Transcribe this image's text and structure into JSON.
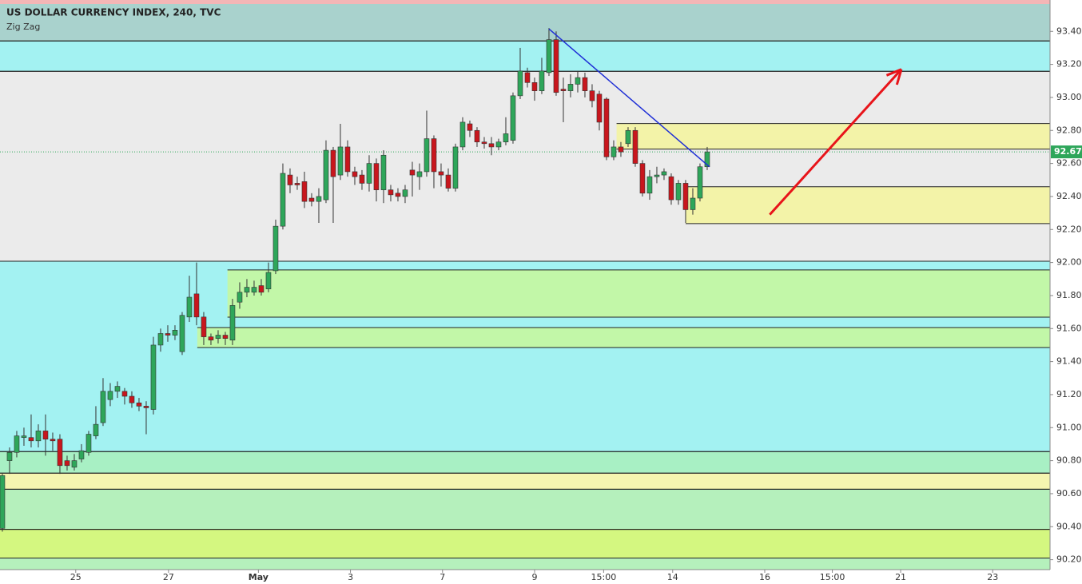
{
  "chart_data": {
    "type": "candlestick",
    "title": "US DOLLAR CURRENCY INDEX, 240, TVC",
    "subtitle": "Zig Zag",
    "up_color": "#2ea65a",
    "down_color": "#c8161d",
    "x": [
      0,
      1,
      2,
      3,
      4,
      5,
      6,
      7,
      8,
      9,
      10,
      11,
      12,
      13,
      14,
      15,
      16,
      17,
      18,
      19,
      20,
      21,
      22,
      23,
      24,
      25,
      26,
      27,
      28,
      29,
      30,
      31,
      32,
      33,
      34,
      35,
      36,
      37,
      38,
      39,
      40,
      41,
      42,
      43,
      44,
      45,
      46,
      47,
      48,
      49,
      50,
      51,
      52,
      53,
      54,
      55,
      56,
      57,
      58,
      59,
      60,
      61,
      62,
      63,
      64,
      65,
      66,
      67,
      68,
      69,
      70,
      71,
      72,
      73,
      74,
      75,
      76,
      77,
      78,
      79,
      80,
      81,
      82,
      83,
      84,
      85,
      86,
      87,
      88,
      89,
      90,
      91,
      92,
      93,
      94,
      95,
      96,
      97,
      98
    ],
    "open": [
      90.39,
      90.8,
      90.85,
      90.94,
      90.94,
      90.92,
      90.98,
      90.93,
      90.93,
      90.8,
      90.76,
      90.81,
      90.85,
      90.95,
      91.03,
      91.17,
      91.22,
      91.22,
      91.19,
      91.15,
      91.13,
      91.11,
      91.5,
      91.57,
      91.56,
      91.46,
      91.67,
      91.81,
      91.67,
      91.55,
      91.54,
      91.56,
      91.53,
      91.76,
      91.82,
      91.82,
      91.86,
      91.84,
      91.95,
      92.22,
      92.53,
      92.48,
      92.49,
      92.39,
      92.37,
      92.38,
      92.68,
      92.53,
      92.7,
      92.55,
      92.53,
      92.48,
      92.6,
      92.44,
      92.44,
      92.42,
      92.4,
      92.56,
      92.52,
      92.55,
      92.75,
      92.55,
      92.53,
      92.45,
      92.7,
      92.84,
      92.8,
      92.73,
      92.72,
      92.7,
      92.73,
      92.74,
      93.01,
      93.15,
      93.09,
      93.04,
      93.15,
      93.35,
      93.05,
      93.04,
      93.08,
      93.12,
      93.04,
      93.02,
      92.99,
      92.64,
      92.7,
      92.72,
      92.8,
      92.6,
      92.42,
      92.52,
      92.53,
      92.52,
      92.38,
      92.48,
      92.32,
      92.39,
      92.58
    ],
    "high": [
      90.72,
      90.88,
      90.98,
      91.0,
      91.08,
      91.02,
      91.08,
      90.97,
      90.96,
      90.83,
      90.84,
      90.9,
      90.98,
      91.13,
      91.3,
      91.27,
      91.28,
      91.24,
      91.22,
      91.18,
      91.16,
      91.55,
      91.6,
      91.62,
      91.62,
      91.7,
      91.92,
      92.0,
      91.7,
      91.57,
      91.59,
      91.58,
      91.78,
      91.88,
      91.9,
      91.89,
      91.9,
      92.0,
      92.26,
      92.6,
      92.57,
      92.52,
      92.55,
      92.42,
      92.45,
      92.74,
      92.7,
      92.84,
      92.74,
      92.58,
      92.56,
      92.65,
      92.63,
      92.68,
      92.47,
      92.45,
      92.47,
      92.61,
      92.6,
      92.92,
      92.77,
      92.6,
      92.57,
      92.72,
      92.88,
      92.86,
      92.82,
      92.76,
      92.76,
      92.75,
      92.88,
      93.03,
      93.3,
      93.18,
      93.12,
      93.24,
      93.42,
      93.4,
      93.12,
      93.14,
      93.16,
      93.15,
      93.08,
      93.04,
      93.0,
      92.74,
      92.73,
      92.82,
      92.82,
      92.62,
      92.56,
      92.58,
      92.57,
      92.54,
      92.5,
      92.5,
      92.45,
      92.6,
      92.7
    ],
    "low": [
      90.37,
      90.72,
      90.82,
      90.89,
      90.88,
      90.88,
      90.83,
      90.86,
      90.72,
      90.74,
      90.74,
      90.79,
      90.83,
      90.93,
      91.01,
      91.13,
      91.18,
      91.14,
      91.12,
      91.1,
      90.96,
      91.08,
      91.46,
      91.52,
      91.53,
      91.44,
      91.64,
      91.62,
      91.5,
      91.5,
      91.51,
      91.5,
      91.5,
      91.72,
      91.79,
      91.8,
      91.8,
      91.82,
      91.93,
      92.2,
      92.42,
      92.44,
      92.33,
      92.34,
      92.24,
      92.36,
      92.24,
      92.5,
      92.52,
      92.47,
      92.44,
      92.43,
      92.37,
      92.36,
      92.37,
      92.37,
      92.36,
      92.4,
      92.44,
      92.52,
      92.45,
      92.46,
      92.43,
      92.43,
      92.68,
      92.76,
      92.7,
      92.69,
      92.65,
      92.68,
      92.71,
      92.72,
      92.99,
      93.06,
      92.98,
      93.02,
      93.13,
      93.01,
      92.85,
      93.0,
      93.03,
      93.0,
      92.94,
      92.8,
      92.62,
      92.62,
      92.64,
      92.7,
      92.58,
      92.4,
      92.38,
      92.48,
      92.5,
      92.35,
      92.35,
      92.24,
      92.29,
      92.37,
      92.56
    ],
    "close": [
      90.71,
      90.85,
      90.95,
      90.95,
      90.92,
      90.98,
      90.93,
      90.92,
      90.77,
      90.77,
      90.8,
      90.86,
      90.96,
      91.02,
      91.22,
      91.22,
      91.25,
      91.19,
      91.15,
      91.13,
      91.12,
      91.5,
      91.57,
      91.56,
      91.59,
      91.68,
      91.79,
      91.67,
      91.55,
      91.53,
      91.56,
      91.54,
      91.74,
      91.82,
      91.85,
      91.85,
      91.82,
      91.94,
      92.22,
      92.54,
      92.47,
      92.47,
      92.37,
      92.37,
      92.4,
      92.68,
      92.52,
      92.7,
      92.55,
      92.52,
      92.48,
      92.6,
      92.44,
      92.65,
      92.41,
      92.4,
      92.44,
      92.53,
      92.55,
      92.75,
      92.55,
      92.53,
      92.45,
      92.7,
      92.85,
      92.8,
      92.73,
      92.72,
      92.7,
      92.73,
      92.78,
      93.01,
      93.16,
      93.09,
      93.04,
      93.16,
      93.35,
      93.03,
      93.04,
      93.08,
      93.12,
      93.04,
      92.98,
      92.85,
      92.64,
      92.7,
      92.67,
      92.8,
      92.6,
      92.42,
      92.52,
      92.53,
      92.55,
      92.38,
      92.48,
      92.32,
      92.39,
      92.58,
      92.67
    ],
    "last": 92.67,
    "last_color": "#2ea65a",
    "bands": [
      {
        "from": 93.342,
        "to": 93.59,
        "color": "#a9d2cd"
      },
      {
        "from": 93.158,
        "to": 93.342,
        "color": "#a3f2f2"
      },
      {
        "from": 92.008,
        "to": 93.158,
        "color": "#ebebeb"
      },
      {
        "from": 90.855,
        "to": 92.008,
        "color": "#a3f2f2"
      },
      {
        "from": 90.724,
        "to": 90.855,
        "color": "#a8f0c4"
      },
      {
        "from": 90.627,
        "to": 90.724,
        "color": "#f5f5b0"
      },
      {
        "from": 90.384,
        "to": 90.627,
        "color": "#b5f0bc"
      },
      {
        "from": 90.21,
        "to": 90.384,
        "color": "#d4f780"
      },
      {
        "from": 90.14,
        "to": 90.21,
        "color": "#b5f0bc"
      }
    ],
    "boxes": [
      {
        "from": 92.687,
        "to": 92.842,
        "start": 85.4,
        "color": "#f3f3a8"
      },
      {
        "from": 92.236,
        "to": 92.459,
        "start": 95,
        "color": "#f3f3a8"
      },
      {
        "from": 91.669,
        "to": 91.955,
        "start": 31.3,
        "color": "#c2f7a8"
      },
      {
        "from": 91.485,
        "to": 91.606,
        "start": 27.1,
        "color": "#c2f7a8"
      }
    ],
    "zigzag": {
      "x": [
        76,
        98.3
      ],
      "y": [
        93.415,
        92.58
      ],
      "color": "#1f2fd6"
    },
    "arrow": {
      "x": [
        106.7,
        125
      ],
      "y": [
        92.29,
        93.17
      ],
      "color": "#e8141a"
    },
    "xlim": [
      -0.33,
      145.67
    ],
    "ylim": [
      90.14,
      93.59
    ],
    "xticks": [
      {
        "value": 10.2,
        "label": "25"
      },
      {
        "value": 23.1,
        "label": "27"
      },
      {
        "value": 35.6,
        "label": "May"
      },
      {
        "value": 48.4,
        "label": "3"
      },
      {
        "value": 61.2,
        "label": "7"
      },
      {
        "value": 74,
        "label": "9"
      },
      {
        "value": 83.6,
        "label": "15:00"
      },
      {
        "value": 93.2,
        "label": "14"
      },
      {
        "value": 106,
        "label": "16"
      },
      {
        "value": 115.4,
        "label": "15:00"
      },
      {
        "value": 124.9,
        "label": "21"
      },
      {
        "value": 137.7,
        "label": "23"
      }
    ],
    "yticks": [
      {
        "value": 90.2,
        "label": "90.20"
      },
      {
        "value": 90.4,
        "label": "90.40"
      },
      {
        "value": 90.6,
        "label": "90.60"
      },
      {
        "value": 90.8,
        "label": "90.80"
      },
      {
        "value": 91,
        "label": "91.00"
      },
      {
        "value": 91.2,
        "label": "91.20"
      },
      {
        "value": 91.4,
        "label": "91.40"
      },
      {
        "value": 91.6,
        "label": "91.60"
      },
      {
        "value": 91.8,
        "label": "91.80"
      },
      {
        "value": 92,
        "label": "92.00"
      },
      {
        "value": 92.2,
        "label": "92.20"
      },
      {
        "value": 92.4,
        "label": "92.40"
      },
      {
        "value": 92.6,
        "label": "92.60"
      },
      {
        "value": 92.8,
        "label": "92.80"
      },
      {
        "value": 93,
        "label": "93.00"
      },
      {
        "value": 93.2,
        "label": "93.20"
      },
      {
        "value": 93.4,
        "label": "93.40"
      }
    ]
  }
}
